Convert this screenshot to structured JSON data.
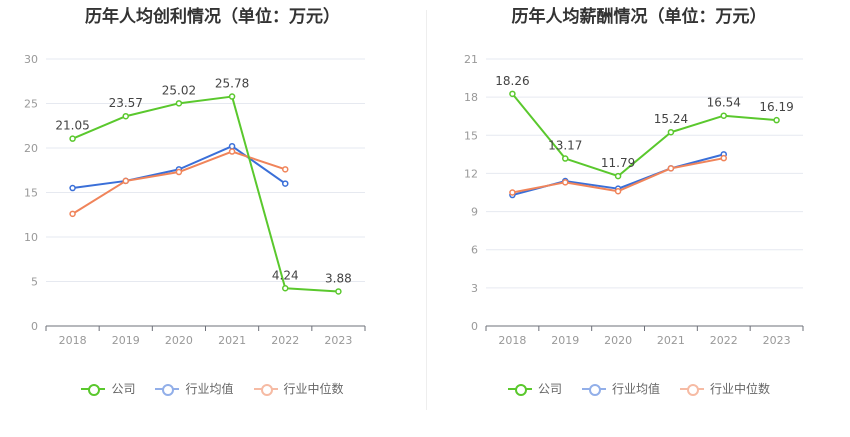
{
  "chart_data": [
    {
      "type": "line",
      "title": "历年人均创利情况（单位：万元）",
      "categories": [
        "2018",
        "2019",
        "2020",
        "2021",
        "2022",
        "2023"
      ],
      "ylim": [
        0,
        30
      ],
      "yticks": [
        0,
        5,
        10,
        15,
        20,
        25,
        30
      ],
      "grid": true,
      "legend_position": "bottom",
      "series": [
        {
          "name": "公司",
          "color": "#5ac82d",
          "values": [
            21.05,
            23.57,
            25.02,
            25.78,
            4.24,
            3.88
          ],
          "labels": true
        },
        {
          "name": "行业均值",
          "color": "#3a6fd8",
          "values": [
            15.5,
            16.3,
            17.6,
            20.2,
            16.0,
            null
          ],
          "labels": false
        },
        {
          "name": "行业中位数",
          "color": "#f0845a",
          "values": [
            12.6,
            16.3,
            17.3,
            19.6,
            17.6,
            null
          ],
          "labels": false
        }
      ]
    },
    {
      "type": "line",
      "title": "历年人均薪酬情况（单位：万元）",
      "categories": [
        "2018",
        "2019",
        "2020",
        "2021",
        "2022",
        "2023"
      ],
      "ylim": [
        0,
        21
      ],
      "yticks": [
        0,
        3,
        6,
        9,
        12,
        15,
        18,
        21
      ],
      "grid": true,
      "legend_position": "bottom",
      "series": [
        {
          "name": "公司",
          "color": "#5ac82d",
          "values": [
            18.26,
            13.17,
            11.79,
            15.24,
            16.54,
            16.19
          ],
          "labels": true
        },
        {
          "name": "行业均值",
          "color": "#3a6fd8",
          "values": [
            10.3,
            11.4,
            10.8,
            12.4,
            13.5,
            null
          ],
          "labels": false
        },
        {
          "name": "行业中位数",
          "color": "#f0845a",
          "values": [
            10.5,
            11.3,
            10.6,
            12.4,
            13.2,
            null
          ],
          "labels": false
        }
      ]
    }
  ]
}
